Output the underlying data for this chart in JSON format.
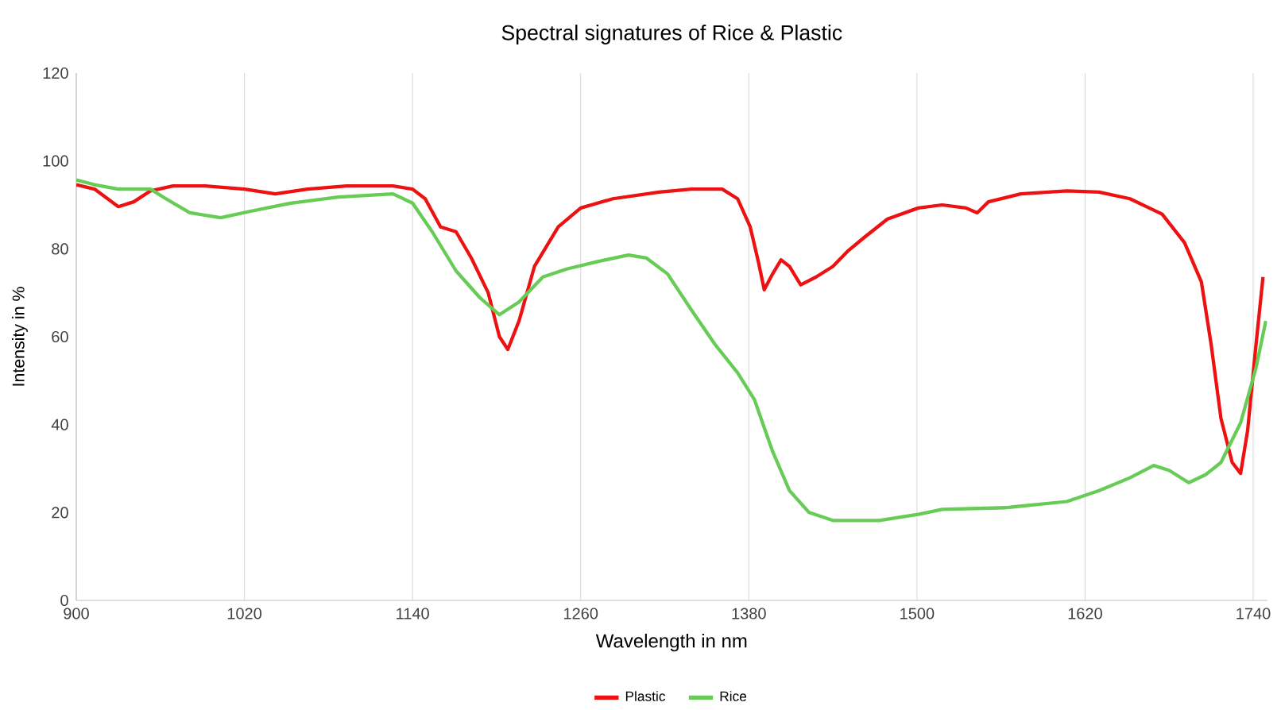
{
  "chart_data": {
    "type": "line",
    "title": "Spectral signatures of  Rice & Plastic",
    "xlabel": "Wavelength in nm",
    "ylabel": "Intensity in %",
    "xlim": [
      900,
      1750
    ],
    "ylim": [
      0,
      120
    ],
    "xticks": [
      900,
      1020,
      1140,
      1260,
      1380,
      1500,
      1620,
      1740
    ],
    "yticks": [
      0,
      20,
      40,
      60,
      80,
      100,
      120
    ],
    "grid": "x",
    "legend": "bottom",
    "series": [
      {
        "name": "Plastic",
        "color": "#ee1111",
        "x": [
          900,
          913,
          930,
          941,
          953,
          969,
          992,
          1020,
          1042,
          1065,
          1093,
          1126,
          1140,
          1149,
          1160,
          1171,
          1182,
          1194,
          1202,
          1208,
          1216,
          1227,
          1244,
          1260,
          1283,
          1316,
          1339,
          1361,
          1372,
          1381,
          1387,
          1391,
          1397,
          1403,
          1409,
          1417,
          1428,
          1440,
          1451,
          1462,
          1479,
          1501,
          1518,
          1535,
          1543,
          1551,
          1574,
          1607,
          1630,
          1652,
          1675,
          1691,
          1703,
          1710,
          1717,
          1725,
          1731,
          1736,
          1742,
          1747
        ],
        "values": [
          94.6,
          93.6,
          89.6,
          90.7,
          93.2,
          94.3,
          94.3,
          93.6,
          92.5,
          93.6,
          94.3,
          94.3,
          93.6,
          91.4,
          85,
          83.9,
          77.9,
          70,
          60,
          57.1,
          63.6,
          76,
          85,
          89.3,
          91.4,
          92.9,
          93.6,
          93.6,
          91.4,
          85,
          76.8,
          70.7,
          74.3,
          77.5,
          76,
          71.8,
          73.6,
          76,
          79.6,
          82.5,
          86.8,
          89.3,
          90,
          89.3,
          88.2,
          90.7,
          92.5,
          93.2,
          92.9,
          91.4,
          87.9,
          81.4,
          72.5,
          58.2,
          41.4,
          31.4,
          28.9,
          38.6,
          58.2,
          73.6
        ]
      },
      {
        "name": "Rice",
        "color": "#66cc55",
        "x": [
          900,
          913,
          930,
          953,
          964,
          981,
          1003,
          1025,
          1053,
          1087,
          1126,
          1140,
          1154,
          1171,
          1188,
          1202,
          1216,
          1233,
          1250,
          1272,
          1294,
          1307,
          1322,
          1339,
          1356,
          1372,
          1384,
          1397,
          1409,
          1423,
          1440,
          1473,
          1501,
          1518,
          1563,
          1607,
          1630,
          1652,
          1669,
          1680,
          1694,
          1706,
          1717,
          1731,
          1742,
          1749
        ],
        "values": [
          95.7,
          94.6,
          93.6,
          93.6,
          91.4,
          88.2,
          87.1,
          88.6,
          90.4,
          91.8,
          92.5,
          90.4,
          83.9,
          75,
          68.9,
          65,
          67.9,
          73.6,
          75.4,
          77.1,
          78.6,
          77.9,
          74.3,
          66.1,
          58.2,
          51.8,
          45.7,
          33.9,
          25,
          20,
          18.2,
          18.2,
          19.6,
          20.7,
          21.1,
          22.5,
          25,
          27.9,
          30.7,
          29.6,
          26.8,
          28.6,
          31.4,
          40.4,
          52.9,
          63.6
        ]
      }
    ]
  }
}
